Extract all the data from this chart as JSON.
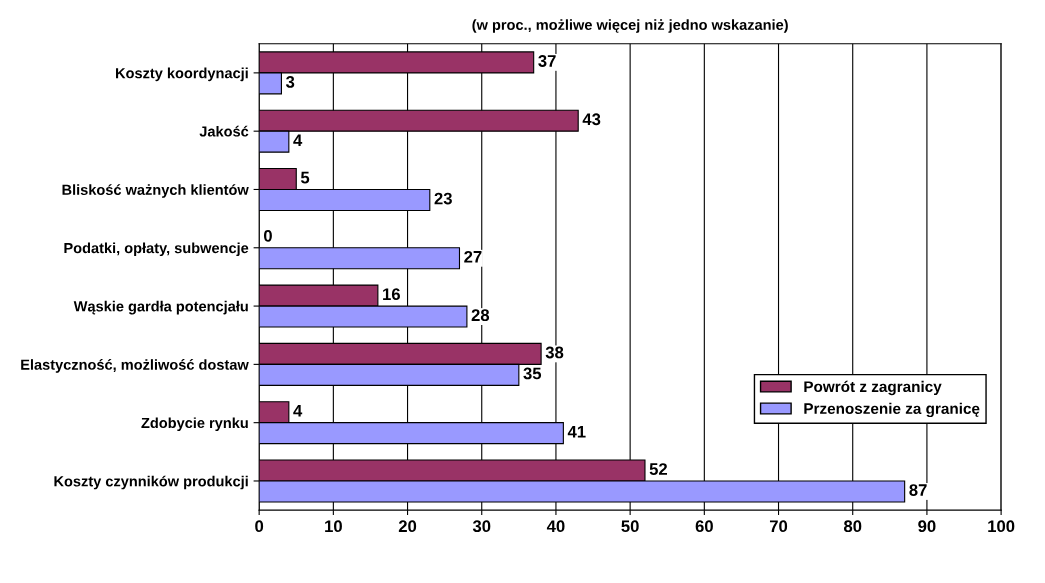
{
  "chart_data": {
    "type": "bar",
    "orientation": "horizontal",
    "title": "(w proc., możliwe więcej niż jedno wskazanie)",
    "categories": [
      "Koszty koordynacji",
      "Jakość",
      "Bliskość ważnych klientów",
      "Podatki, opłaty, subwencje",
      "Wąskie gardła potencjału",
      "Elastyczność, możliwość dostaw",
      "Zdobycie rynku",
      "Koszty czynników produkcji"
    ],
    "series": [
      {
        "name": "Powrót z zagranicy",
        "color": "#993366",
        "values": [
          37,
          43,
          5,
          0,
          16,
          38,
          4,
          52
        ]
      },
      {
        "name": "Przenoszenie za granicę",
        "color": "#9999ff",
        "values": [
          3,
          4,
          23,
          27,
          28,
          35,
          41,
          87
        ]
      }
    ],
    "xlim": [
      0,
      100
    ],
    "xticks": [
      0,
      10,
      20,
      30,
      40,
      50,
      60,
      70,
      80,
      90,
      100
    ],
    "grid": "x",
    "legend": "bottom right",
    "data_labels": true
  }
}
